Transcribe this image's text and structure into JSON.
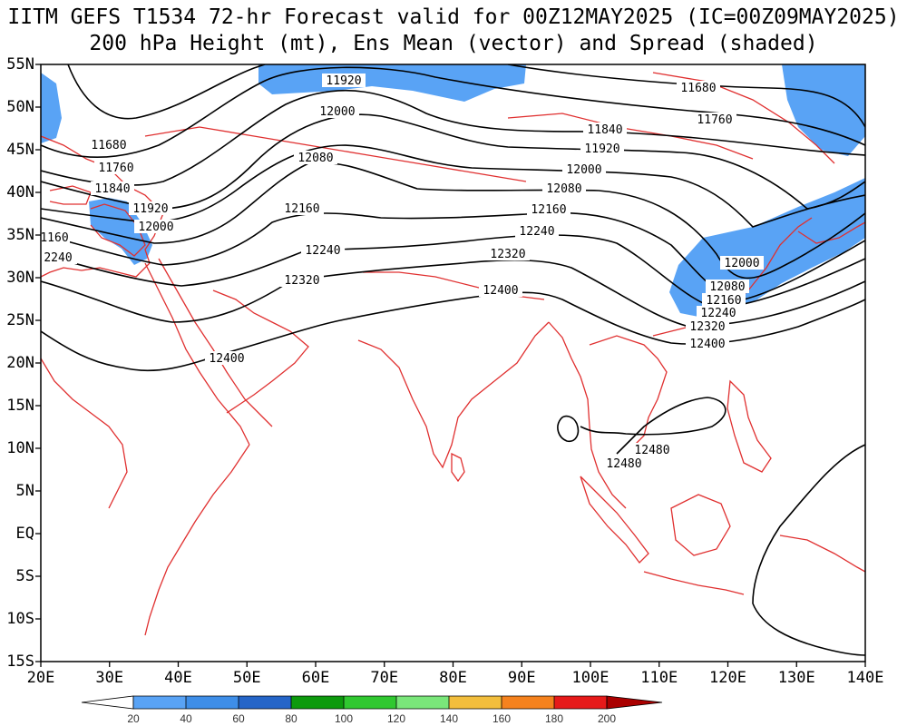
{
  "title": {
    "line1": "IITM GEFS T1534 72-hr Forecast valid for 00Z12MAY2025 (IC=00Z09MAY2025)",
    "line2": "200 hPa Height (mt), Ens Mean (vector) and Spread (shaded)"
  },
  "axes": {
    "x_labels": [
      "20E",
      "30E",
      "40E",
      "50E",
      "60E",
      "70E",
      "80E",
      "90E",
      "100E",
      "110E",
      "120E",
      "130E",
      "140E"
    ],
    "y_labels": [
      "55N",
      "50N",
      "45N",
      "40N",
      "35N",
      "30N",
      "25N",
      "20N",
      "15N",
      "10N",
      "5N",
      "EQ",
      "5S",
      "10S",
      "15S"
    ],
    "lon_range": [
      20,
      140
    ],
    "lat_range": [
      -15,
      55
    ]
  },
  "contour_labels": [
    "11680",
    "11760",
    "11840",
    "11920",
    "12000",
    "12080",
    "12160",
    "12240",
    "12320",
    "12400",
    "12480"
  ],
  "colorbar": {
    "ticks": [
      "20",
      "40",
      "60",
      "80",
      "100",
      "120",
      "140",
      "160",
      "180",
      "200"
    ],
    "colors": [
      "#ffffff",
      "#59a3f5",
      "#3e8ee8",
      "#2565c8",
      "#0d9a0d",
      "#30c830",
      "#7ae67a",
      "#f2be3c",
      "#f5821e",
      "#e61a1a",
      "#aa0000"
    ]
  },
  "colors": {
    "contour": "#000000",
    "coastline": "#e03030",
    "shading": "#59a3f5"
  }
}
